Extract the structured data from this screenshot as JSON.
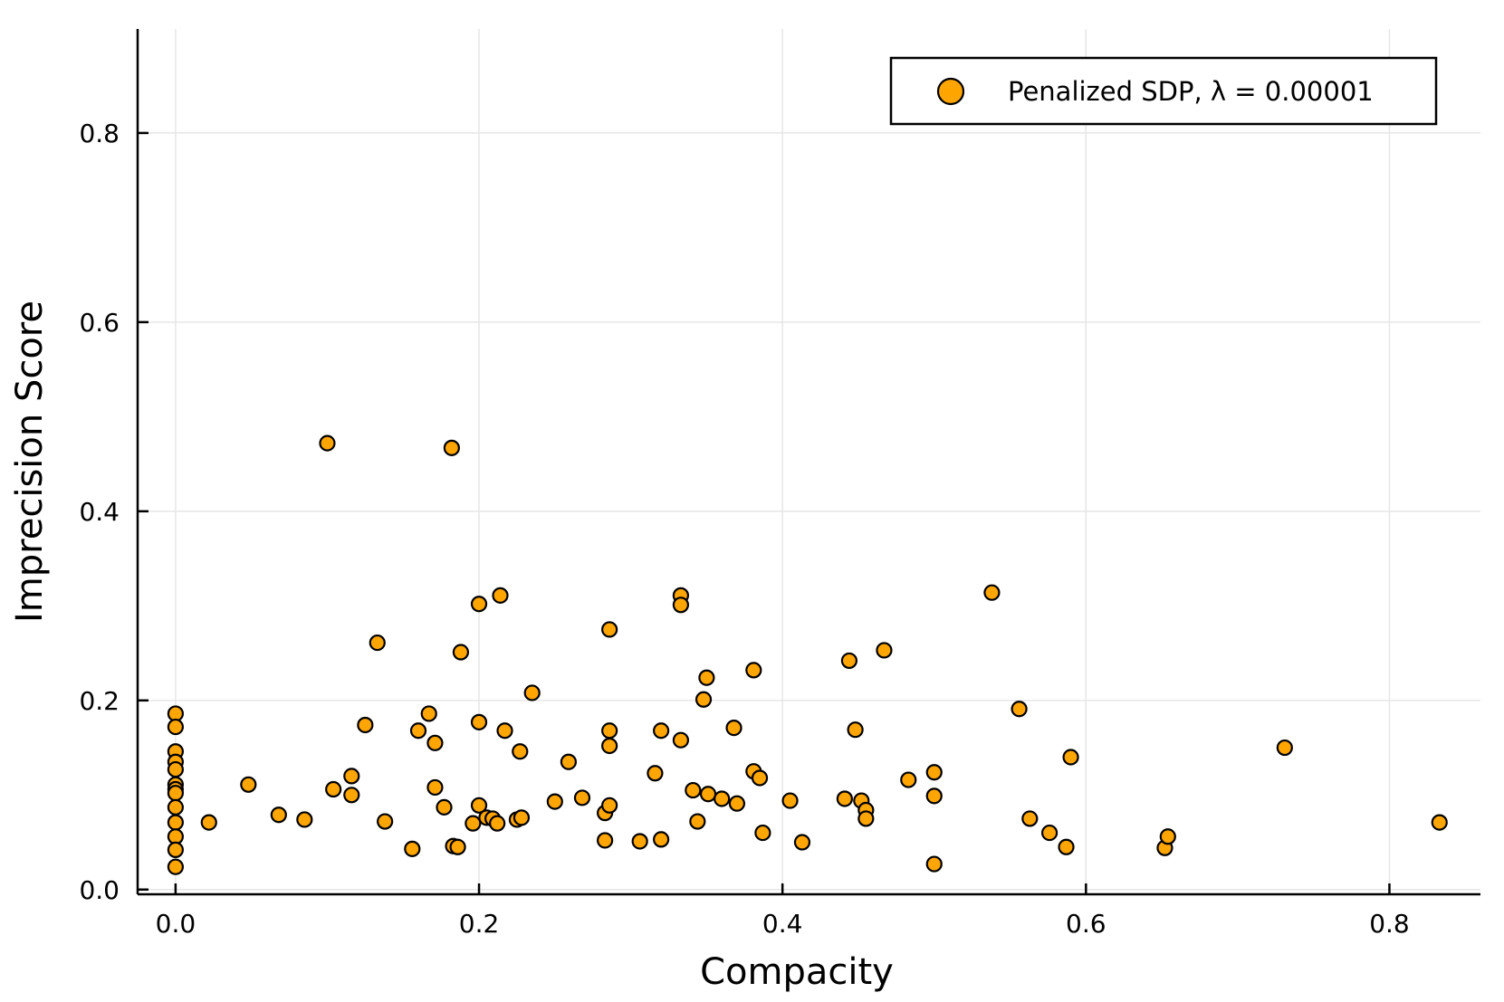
{
  "chart_data": {
    "type": "scatter",
    "xlabel": "Compacity",
    "ylabel": "Imprecision Score",
    "xlim": [
      -0.025,
      0.86
    ],
    "ylim": [
      -0.005,
      0.91
    ],
    "xticks": [
      0.0,
      0.2,
      0.4,
      0.6,
      0.8
    ],
    "yticks": [
      0.0,
      0.2,
      0.4,
      0.6,
      0.8
    ],
    "xtick_labels": [
      "0.0",
      "0.2",
      "0.4",
      "0.6",
      "0.8"
    ],
    "ytick_labels": [
      "0.0",
      "0.2",
      "0.4",
      "0.6",
      "0.8"
    ],
    "grid": true,
    "legend_position": "top-right",
    "series": [
      {
        "name": "Penalized SDP, λ = 0.00001",
        "color": "#FFA500",
        "marker": "circle",
        "points": [
          [
            0.0,
            0.186
          ],
          [
            0.0,
            0.172
          ],
          [
            0.0,
            0.146
          ],
          [
            0.0,
            0.135
          ],
          [
            0.0,
            0.127
          ],
          [
            0.0,
            0.111
          ],
          [
            0.0,
            0.106
          ],
          [
            0.0,
            0.102
          ],
          [
            0.0,
            0.087
          ],
          [
            0.0,
            0.071
          ],
          [
            0.0,
            0.056
          ],
          [
            0.0,
            0.042
          ],
          [
            0.0,
            0.024
          ],
          [
            0.022,
            0.071
          ],
          [
            0.048,
            0.111
          ],
          [
            0.068,
            0.079
          ],
          [
            0.085,
            0.074
          ],
          [
            0.1,
            0.472
          ],
          [
            0.104,
            0.106
          ],
          [
            0.116,
            0.12
          ],
          [
            0.116,
            0.1
          ],
          [
            0.125,
            0.174
          ],
          [
            0.133,
            0.261
          ],
          [
            0.138,
            0.072
          ],
          [
            0.156,
            0.043
          ],
          [
            0.16,
            0.168
          ],
          [
            0.167,
            0.186
          ],
          [
            0.171,
            0.155
          ],
          [
            0.171,
            0.108
          ],
          [
            0.177,
            0.087
          ],
          [
            0.182,
            0.467
          ],
          [
            0.183,
            0.046
          ],
          [
            0.186,
            0.045
          ],
          [
            0.188,
            0.251
          ],
          [
            0.196,
            0.07
          ],
          [
            0.2,
            0.302
          ],
          [
            0.2,
            0.177
          ],
          [
            0.2,
            0.089
          ],
          [
            0.205,
            0.076
          ],
          [
            0.209,
            0.075
          ],
          [
            0.212,
            0.07
          ],
          [
            0.214,
            0.311
          ],
          [
            0.217,
            0.168
          ],
          [
            0.225,
            0.074
          ],
          [
            0.227,
            0.146
          ],
          [
            0.228,
            0.076
          ],
          [
            0.235,
            0.208
          ],
          [
            0.25,
            0.093
          ],
          [
            0.259,
            0.135
          ],
          [
            0.268,
            0.097
          ],
          [
            0.283,
            0.081
          ],
          [
            0.283,
            0.052
          ],
          [
            0.286,
            0.275
          ],
          [
            0.286,
            0.168
          ],
          [
            0.286,
            0.152
          ],
          [
            0.286,
            0.089
          ],
          [
            0.306,
            0.051
          ],
          [
            0.316,
            0.123
          ],
          [
            0.32,
            0.168
          ],
          [
            0.32,
            0.053
          ],
          [
            0.333,
            0.311
          ],
          [
            0.333,
            0.301
          ],
          [
            0.333,
            0.158
          ],
          [
            0.341,
            0.105
          ],
          [
            0.344,
            0.072
          ],
          [
            0.348,
            0.201
          ],
          [
            0.35,
            0.224
          ],
          [
            0.351,
            0.101
          ],
          [
            0.36,
            0.096
          ],
          [
            0.368,
            0.171
          ],
          [
            0.37,
            0.091
          ],
          [
            0.381,
            0.232
          ],
          [
            0.381,
            0.125
          ],
          [
            0.385,
            0.118
          ],
          [
            0.387,
            0.06
          ],
          [
            0.405,
            0.094
          ],
          [
            0.413,
            0.05
          ],
          [
            0.441,
            0.096
          ],
          [
            0.444,
            0.242
          ],
          [
            0.448,
            0.169
          ],
          [
            0.452,
            0.094
          ],
          [
            0.455,
            0.084
          ],
          [
            0.455,
            0.075
          ],
          [
            0.467,
            0.253
          ],
          [
            0.483,
            0.116
          ],
          [
            0.5,
            0.124
          ],
          [
            0.5,
            0.099
          ],
          [
            0.5,
            0.027
          ],
          [
            0.538,
            0.314
          ],
          [
            0.556,
            0.191
          ],
          [
            0.563,
            0.075
          ],
          [
            0.576,
            0.06
          ],
          [
            0.587,
            0.045
          ],
          [
            0.59,
            0.14
          ],
          [
            0.652,
            0.044
          ],
          [
            0.654,
            0.056
          ],
          [
            0.731,
            0.15
          ],
          [
            0.833,
            0.071
          ]
        ]
      }
    ]
  }
}
